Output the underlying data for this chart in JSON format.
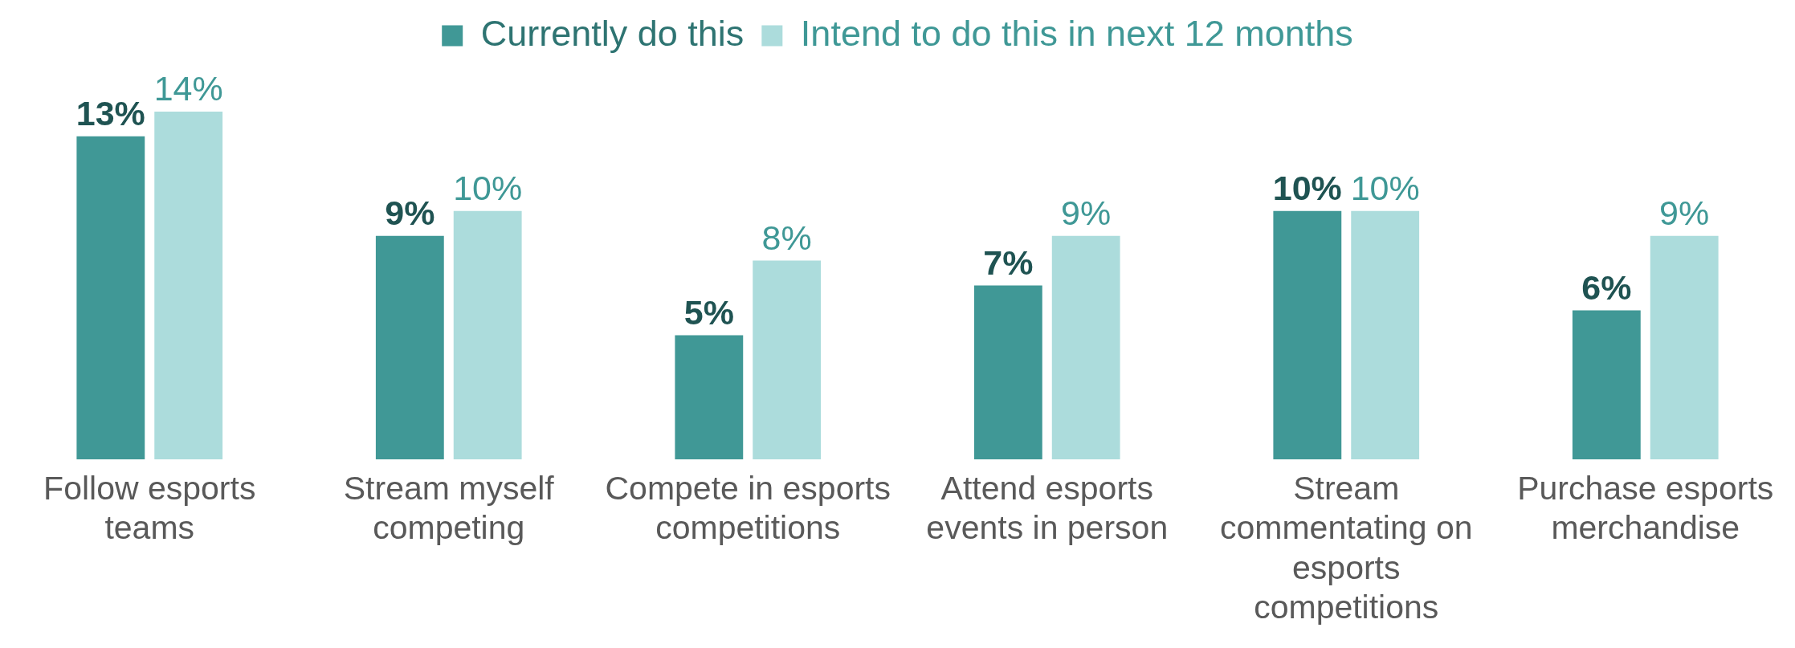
{
  "chart_data": {
    "type": "bar",
    "categories": [
      "Follow esports teams",
      "Stream myself competing",
      "Compete in esports competitions",
      "Attend esports events in person",
      "Stream commentating on esports competitions",
      "Purchase esports merchandise"
    ],
    "series": [
      {
        "name": "Currently do this",
        "color": "#409896",
        "values": [
          13,
          9,
          5,
          7,
          10,
          6
        ],
        "value_labels": [
          "13%",
          "9%",
          "5%",
          "7%",
          "10%",
          "6%"
        ]
      },
      {
        "name": "Intend to do this in next 12 months",
        "color": "#acdcdc",
        "values": [
          14,
          10,
          8,
          9,
          10,
          9
        ],
        "value_labels": [
          "14%",
          "10%",
          "8%",
          "9%",
          "10%",
          "9%"
        ]
      }
    ],
    "legend": "top",
    "grid": false
  }
}
